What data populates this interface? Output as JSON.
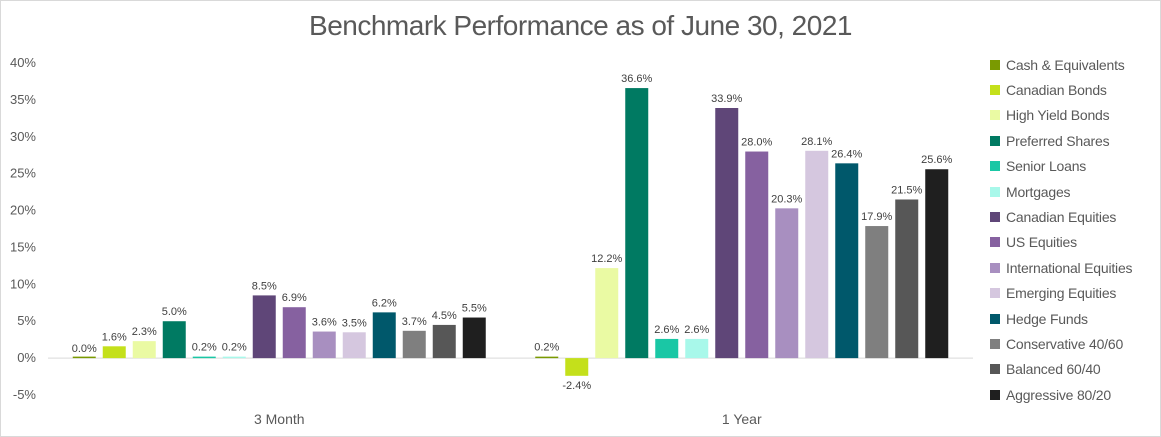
{
  "chart_data": {
    "type": "bar",
    "title": "Benchmark Performance as of June 30, 2021",
    "categories": [
      "3 Month",
      "1 Year"
    ],
    "ylim": [
      -5,
      40
    ],
    "yticks": [
      -5,
      0,
      5,
      10,
      15,
      20,
      25,
      30,
      35,
      40
    ],
    "ytick_labels": [
      "-5%",
      "0%",
      "5%",
      "10%",
      "15%",
      "20%",
      "25%",
      "30%",
      "35%",
      "40%"
    ],
    "grid": false,
    "legend_position": "right",
    "series": [
      {
        "name": "Cash & Equivalents",
        "color": "#7a9a01",
        "values": [
          0.0,
          0.2
        ],
        "labels": [
          "0.0%",
          "0.2%"
        ]
      },
      {
        "name": "Canadian Bonds",
        "color": "#c4e01b",
        "values": [
          1.6,
          -2.4
        ],
        "labels": [
          "1.6%",
          "-2.4%"
        ]
      },
      {
        "name": "High Yield Bonds",
        "color": "#eafaa3",
        "values": [
          2.3,
          12.2
        ],
        "labels": [
          "2.3%",
          "12.2%"
        ]
      },
      {
        "name": "Preferred Shares",
        "color": "#007a62",
        "values": [
          5.0,
          36.6
        ],
        "labels": [
          "5.0%",
          "36.6%"
        ]
      },
      {
        "name": "Senior Loans",
        "color": "#1ac7a5",
        "values": [
          0.2,
          2.6
        ],
        "labels": [
          "0.2%",
          "2.6%"
        ]
      },
      {
        "name": "Mortgages",
        "color": "#a8f8ea",
        "values": [
          0.2,
          2.6
        ],
        "labels": [
          "0.2%",
          "2.6%"
        ]
      },
      {
        "name": "Canadian Equities",
        "color": "#5f4678",
        "values": [
          8.5,
          33.9
        ],
        "labels": [
          "8.5%",
          "33.9%"
        ]
      },
      {
        "name": "US Equities",
        "color": "#8661a0",
        "values": [
          6.9,
          28.0
        ],
        "labels": [
          "6.9%",
          "28.0%"
        ]
      },
      {
        "name": "International Equities",
        "color": "#a88fc0",
        "values": [
          3.6,
          20.3
        ],
        "labels": [
          "3.6%",
          "20.3%"
        ]
      },
      {
        "name": "Emerging Equities",
        "color": "#d5c7df",
        "values": [
          3.5,
          28.1
        ],
        "labels": [
          "3.5%",
          "28.1%"
        ]
      },
      {
        "name": "Hedge Funds",
        "color": "#00586b",
        "values": [
          6.2,
          26.4
        ],
        "labels": [
          "6.2%",
          "26.4%"
        ]
      },
      {
        "name": "Conservative 40/60",
        "color": "#7f7f7f",
        "values": [
          3.7,
          17.9
        ],
        "labels": [
          "3.7%",
          "17.9%"
        ]
      },
      {
        "name": "Balanced 60/40",
        "color": "#575757",
        "values": [
          4.5,
          21.5
        ],
        "labels": [
          "4.5%",
          "21.5%"
        ]
      },
      {
        "name": "Aggressive 80/20",
        "color": "#1f1f1f",
        "values": [
          5.5,
          25.6
        ],
        "labels": [
          "5.5%",
          "25.6%"
        ]
      }
    ]
  }
}
